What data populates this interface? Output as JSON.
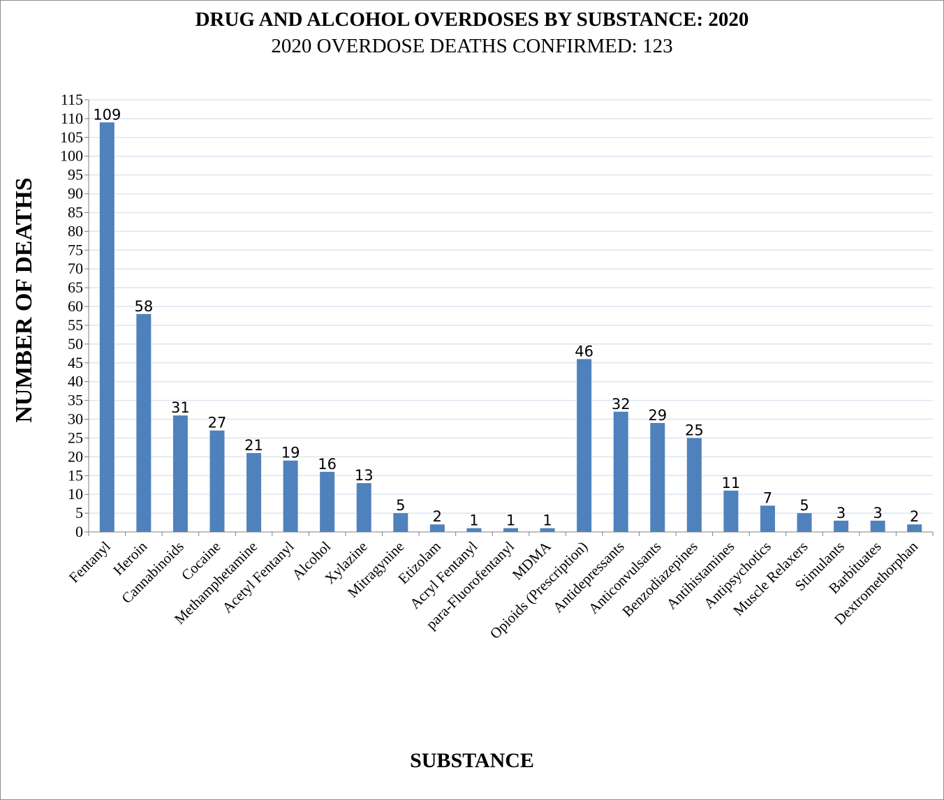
{
  "chart_data": {
    "type": "bar",
    "title": "DRUG AND ALCOHOL OVERDOSES BY SUBSTANCE: 2020",
    "subtitle": "2020 OVERDOSE DEATHS CONFIRMED: 123",
    "xlabel": "SUBSTANCE",
    "ylabel": "NUMBER OF DEATHS",
    "ylim": [
      0,
      115
    ],
    "ytick_step": 5,
    "grid": true,
    "bar_color": "#4f81bd",
    "grid_color": "#dbe5f1",
    "categories": [
      "Fentanyl",
      "Heroin",
      "Cannabinoids",
      "Cocaine",
      "Methamphetamine",
      "Acetyl Fentanyl",
      "Alcohol",
      "Xylazine",
      "Mitragynine",
      "Etizolam",
      "Acryl Fentanyl",
      "para-Fluorofentanyl",
      "MDMA",
      "Opioids (Prescription)",
      "Antidepressants",
      "Anticonvulsants",
      "Benzodiazepines",
      "Antihistamines",
      "Antipsychotics",
      "Muscle Relaxers",
      "Stimulants",
      "Barbituates",
      "Dextromethorphan"
    ],
    "values": [
      109,
      58,
      31,
      27,
      21,
      19,
      16,
      13,
      5,
      2,
      1,
      1,
      1,
      46,
      32,
      29,
      25,
      11,
      7,
      5,
      3,
      3,
      2
    ]
  }
}
